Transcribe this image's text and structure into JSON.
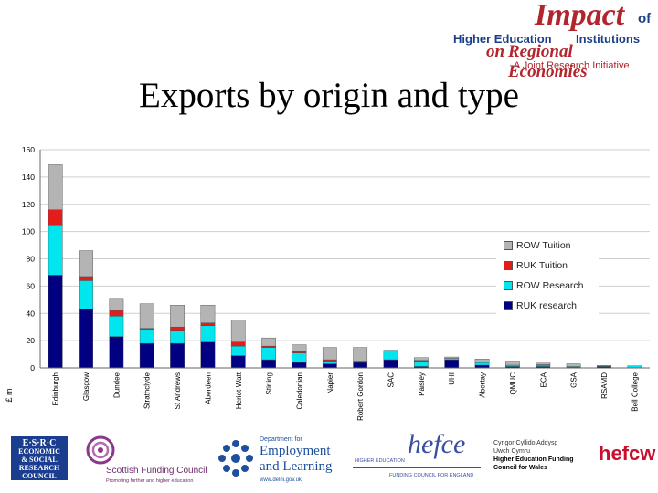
{
  "banner": {
    "word_impact": "Impact",
    "word_of": "of",
    "line1": "Higher Education",
    "line1b": "Institutions",
    "line2_on": "on",
    "line2": "Regional Economies",
    "tagline": "A Joint Research Initiative"
  },
  "slide_title": "Exports by origin and type",
  "chart_data": {
    "type": "bar",
    "stacked": true,
    "ylabel": "£ m",
    "ylim": [
      0,
      160
    ],
    "yticks": [
      0,
      20,
      40,
      60,
      80,
      100,
      120,
      140,
      160
    ],
    "grid": true,
    "categories": [
      "Edinburgh",
      "Glasgow",
      "Dundee",
      "Strathclyde",
      "St Andrews",
      "Aberdeen",
      "Heriot-Watt",
      "Stirling",
      "Caledonian",
      "Napier",
      "Robert Gordon",
      "SAC",
      "Paisley",
      "UHI",
      "Abertay",
      "QMUC",
      "ECA",
      "GSA",
      "RSAMD",
      "Bell College"
    ],
    "series": [
      {
        "name": "RUK research",
        "color": "#000080",
        "values": [
          68,
          43,
          23,
          18,
          18,
          19,
          9,
          6,
          4,
          3,
          4,
          6,
          1,
          6,
          2,
          1,
          1,
          0.5,
          1,
          0
        ]
      },
      {
        "name": "ROW Research",
        "color": "#00e5ee",
        "values": [
          37,
          21,
          15,
          10,
          9,
          12,
          7,
          9,
          7,
          2,
          0.5,
          7,
          4,
          1,
          2,
          1,
          1,
          0.5,
          0.3,
          1.5
        ]
      },
      {
        "name": "RUK Tuition",
        "color": "#e51c1c",
        "values": [
          11,
          3,
          4,
          1,
          3,
          2,
          3,
          1,
          1,
          1,
          0.5,
          0,
          0.5,
          0,
          0.5,
          0,
          0.3,
          0,
          0,
          0
        ]
      },
      {
        "name": "ROW Tuition",
        "color": "#b4b4b4",
        "values": [
          33,
          19,
          9,
          18,
          16,
          13,
          16,
          6,
          5,
          9,
          10,
          0,
          2,
          1,
          2,
          3,
          2,
          2,
          0.5,
          0
        ]
      }
    ],
    "legend": {
      "position": "right",
      "entries": [
        "ROW Tuition",
        "RUK Tuition",
        "ROW Research",
        "RUK research"
      ],
      "colors": [
        "#b4b4b4",
        "#e51c1c",
        "#00e5ee",
        "#000080"
      ]
    }
  },
  "footer": {
    "esrc_line1": "E·S·R·C",
    "esrc_line2": "ECONOMIC",
    "esrc_line3": "& SOCIAL",
    "esrc_line4": "RESEARCH",
    "esrc_line5": "COUNCIL",
    "sfc_name": "Scottish Funding Council",
    "sfc_tagline": "Promoting further and higher education",
    "del_line0": "Department for",
    "del_line1": "Employment",
    "del_line2": "and Learning",
    "del_url": "www.delni.gov.uk",
    "hefce_brand": "hefce",
    "hefce_line1": "HIGHER EDUCATION",
    "hefce_line2": "FUNDING COUNCIL FOR ENGLAND",
    "hefcw_w1": "Cyngor Cyllido Addysg",
    "hefcw_w2": "Uwch Cymru",
    "hefcw_e1": "Higher Education Funding",
    "hefcw_e2": "Council for Wales",
    "hefcw_brand": "hefcw"
  }
}
